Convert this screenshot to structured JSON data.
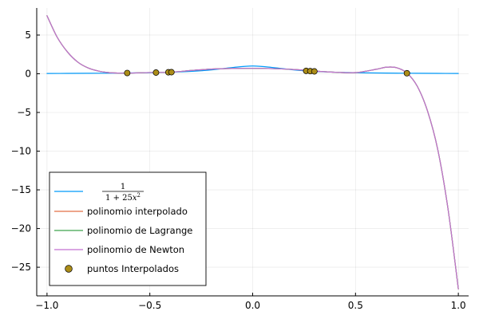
{
  "chart_data": {
    "type": "line",
    "title": "",
    "xlabel": "",
    "ylabel": "",
    "xlim": [
      -1.05,
      1.05
    ],
    "ylim": [
      -28.7,
      8.5
    ],
    "x_ticks": [
      -1.0,
      -0.5,
      0.0,
      0.5,
      1.0
    ],
    "x_tick_labels": [
      "−1.0",
      "−0.5",
      "0.0",
      "0.5",
      "1.0"
    ],
    "y_ticks": [
      5,
      0,
      -5,
      -10,
      -15,
      -20,
      -25
    ],
    "y_tick_labels": [
      "5",
      "0",
      "−5",
      "−10",
      "−15",
      "−20",
      "−25"
    ],
    "grid": true,
    "legend_position": "bottom-left",
    "series": [
      {
        "name": "1/(1+25x^2)",
        "kind": "line",
        "color": "#009AFA",
        "x": [
          -1.0,
          -0.9,
          -0.8,
          -0.7,
          -0.6,
          -0.5,
          -0.4,
          -0.3,
          -0.2,
          -0.1,
          0.0,
          0.1,
          0.2,
          0.3,
          0.4,
          0.5,
          0.6,
          0.7,
          0.8,
          0.9,
          1.0
        ],
        "y": [
          0.038,
          0.047,
          0.059,
          0.075,
          0.1,
          0.138,
          0.2,
          0.308,
          0.5,
          0.8,
          1.0,
          0.8,
          0.5,
          0.308,
          0.2,
          0.138,
          0.1,
          0.075,
          0.059,
          0.047,
          0.038
        ]
      },
      {
        "name": "polinomio interpolado",
        "kind": "line",
        "color": "#E26F46",
        "x": [
          -1.0,
          -0.95,
          -0.9,
          -0.85,
          -0.8,
          -0.75,
          -0.7,
          -0.65,
          -0.6,
          -0.5,
          -0.4,
          -0.3,
          -0.2,
          -0.1,
          0.0,
          0.1,
          0.2,
          0.3,
          0.4,
          0.5,
          0.6,
          0.65,
          0.7,
          0.75,
          0.8,
          0.85,
          0.9,
          0.95,
          1.0
        ],
        "y": [
          7.5,
          4.7,
          2.8,
          1.5,
          0.75,
          0.35,
          0.15,
          0.08,
          0.08,
          0.16,
          0.2,
          0.42,
          0.6,
          0.68,
          0.7,
          0.66,
          0.55,
          0.35,
          0.2,
          0.15,
          0.58,
          0.85,
          0.78,
          0.1,
          -1.6,
          -4.8,
          -9.8,
          -17.5,
          -27.8
        ]
      },
      {
        "name": "polinomio de Lagrange",
        "kind": "line",
        "color": "#3DA44D",
        "x": [
          -1.0,
          -0.95,
          -0.9,
          -0.85,
          -0.8,
          -0.75,
          -0.7,
          -0.65,
          -0.6,
          -0.5,
          -0.4,
          -0.3,
          -0.2,
          -0.1,
          0.0,
          0.1,
          0.2,
          0.3,
          0.4,
          0.5,
          0.6,
          0.65,
          0.7,
          0.75,
          0.8,
          0.85,
          0.9,
          0.95,
          1.0
        ],
        "y": [
          7.5,
          4.7,
          2.8,
          1.5,
          0.75,
          0.35,
          0.15,
          0.08,
          0.08,
          0.16,
          0.2,
          0.42,
          0.6,
          0.68,
          0.7,
          0.66,
          0.55,
          0.35,
          0.2,
          0.15,
          0.58,
          0.85,
          0.78,
          0.1,
          -1.6,
          -4.8,
          -9.8,
          -17.5,
          -27.8
        ]
      },
      {
        "name": "polinomio de Newton",
        "kind": "line",
        "color": "#C271D2",
        "x": [
          -1.0,
          -0.95,
          -0.9,
          -0.85,
          -0.8,
          -0.75,
          -0.7,
          -0.65,
          -0.6,
          -0.5,
          -0.4,
          -0.3,
          -0.2,
          -0.1,
          0.0,
          0.1,
          0.2,
          0.3,
          0.4,
          0.5,
          0.6,
          0.65,
          0.7,
          0.75,
          0.8,
          0.85,
          0.9,
          0.95,
          1.0
        ],
        "y": [
          7.5,
          4.7,
          2.8,
          1.5,
          0.75,
          0.35,
          0.15,
          0.08,
          0.08,
          0.16,
          0.2,
          0.42,
          0.6,
          0.68,
          0.7,
          0.66,
          0.55,
          0.35,
          0.2,
          0.15,
          0.58,
          0.85,
          0.78,
          0.1,
          -1.6,
          -4.8,
          -9.8,
          -17.5,
          -27.8
        ]
      },
      {
        "name": "puntos Interpolados",
        "kind": "scatter",
        "color": "#AC8D18",
        "x": [
          -0.61,
          -0.47,
          -0.41,
          -0.395,
          0.26,
          0.28,
          0.3,
          0.75
        ],
        "y": [
          0.097,
          0.153,
          0.192,
          0.204,
          0.372,
          0.338,
          0.308,
          0.066
        ]
      }
    ]
  }
}
